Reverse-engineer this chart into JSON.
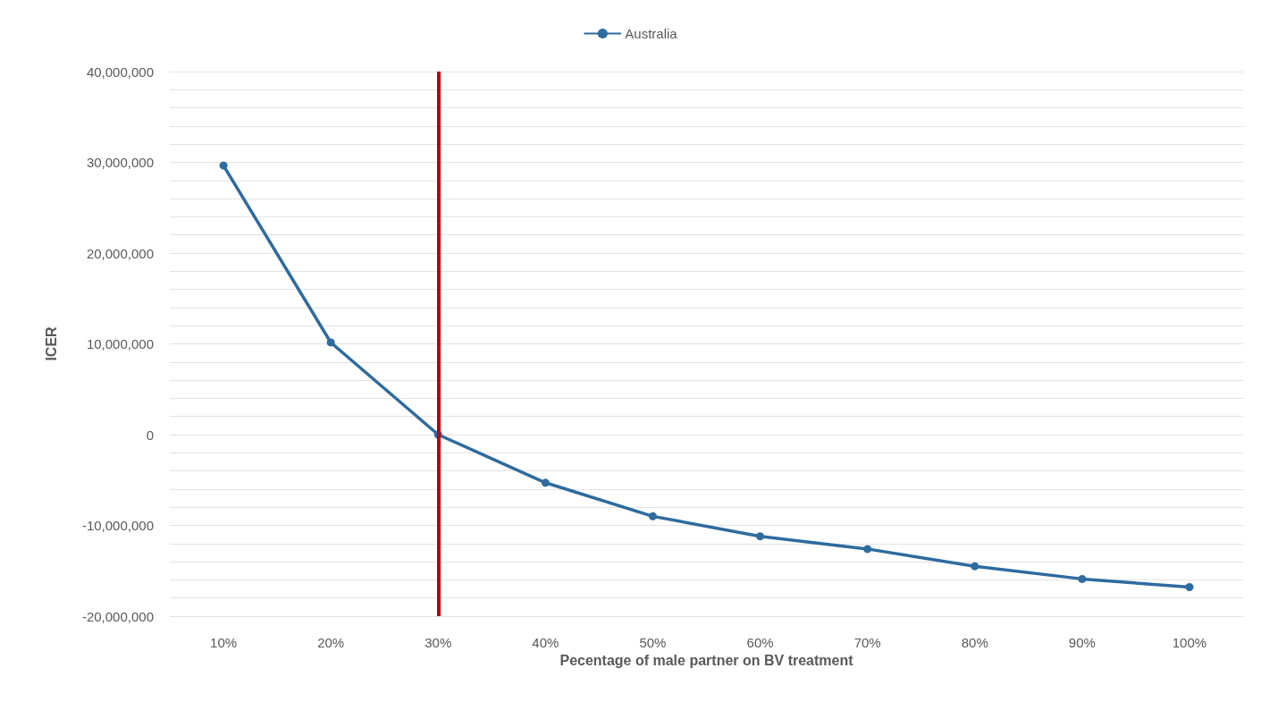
{
  "chart_data": {
    "type": "line",
    "xlabel": "Pecentage of male partner on BV treatment",
    "ylabel": "ICER",
    "categories": [
      "10%",
      "20%",
      "30%",
      "40%",
      "50%",
      "60%",
      "70%",
      "80%",
      "90%",
      "100%"
    ],
    "series": [
      {
        "name": "Australia",
        "color": "#2e6b9e",
        "values": [
          29650000,
          10150000,
          0,
          -5300000,
          -9000000,
          -11200000,
          -12600000,
          -14500000,
          -15900000,
          -16800000
        ]
      }
    ],
    "ylim": [
      -20000000,
      40000000
    ],
    "yticks": [
      {
        "value": -20000000,
        "label": "-20,000,000"
      },
      {
        "value": -18000000,
        "label": null
      },
      {
        "value": -16000000,
        "label": null
      },
      {
        "value": -14000000,
        "label": null
      },
      {
        "value": -12000000,
        "label": null
      },
      {
        "value": -10000000,
        "label": "-10,000,000"
      },
      {
        "value": -8000000,
        "label": null
      },
      {
        "value": -6000000,
        "label": null
      },
      {
        "value": -4000000,
        "label": null
      },
      {
        "value": -2000000,
        "label": null
      },
      {
        "value": 0,
        "label": "0"
      },
      {
        "value": 2000000,
        "label": null
      },
      {
        "value": 4000000,
        "label": null
      },
      {
        "value": 6000000,
        "label": null
      },
      {
        "value": 8000000,
        "label": null
      },
      {
        "value": 10000000,
        "label": "10,000,000"
      },
      {
        "value": 12000000,
        "label": null
      },
      {
        "value": 14000000,
        "label": null
      },
      {
        "value": 16000000,
        "label": null
      },
      {
        "value": 18000000,
        "label": null
      },
      {
        "value": 20000000,
        "label": "20,000,000"
      },
      {
        "value": 22000000,
        "label": null
      },
      {
        "value": 24000000,
        "label": null
      },
      {
        "value": 26000000,
        "label": null
      },
      {
        "value": 28000000,
        "label": null
      },
      {
        "value": 30000000,
        "label": "30,000,000"
      },
      {
        "value": 32000000,
        "label": null
      },
      {
        "value": 34000000,
        "label": null
      },
      {
        "value": 36000000,
        "label": null
      },
      {
        "value": 38000000,
        "label": null
      },
      {
        "value": 40000000,
        "label": "40,000,000"
      }
    ],
    "ref_lines": [
      {
        "axis": "x",
        "value": "30%",
        "color": "#c00000"
      }
    ],
    "grid": "y",
    "legend": "top",
    "marker": "circle",
    "line_style": "solid"
  }
}
